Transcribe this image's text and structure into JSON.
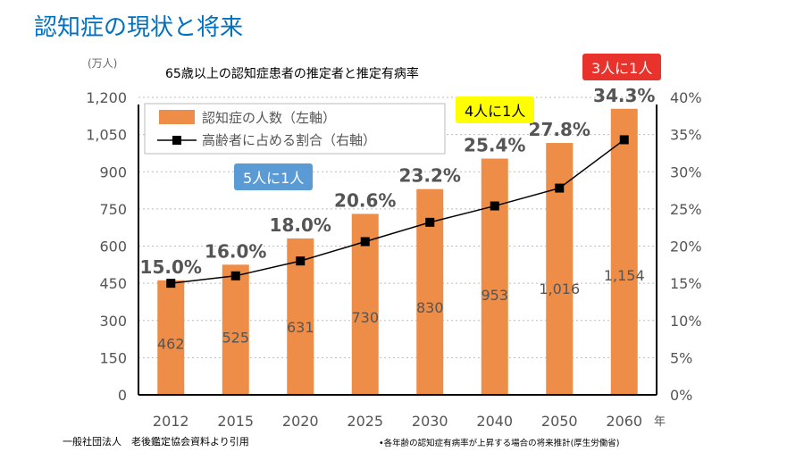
{
  "page": {
    "title": "認知症の現状と将来",
    "source": "一般社団法人　老後鑑定協会資料より引用",
    "note": "•各年齢の認知症有病率が上昇する場合の将来推計(厚生労働省)"
  },
  "callouts": [
    {
      "text": "5人に1人",
      "color": "#5b9bd5",
      "text_color": "#ffffff"
    },
    {
      "text": "4人に1人",
      "color": "#ffff00",
      "text_color": "#000000"
    },
    {
      "text": "3人に1人",
      "color": "#e8322b",
      "text_color": "#ffffff"
    }
  ],
  "chart_data": {
    "type": "bar+line",
    "title": "65歳以上の認知症患者の推定者と推定有病率",
    "left_unit": "(万人)",
    "x_unit": "年",
    "categories": [
      "2012",
      "2015",
      "2020",
      "2025",
      "2030",
      "2040",
      "2050",
      "2060"
    ],
    "series": [
      {
        "name": "認知症の人数（左軸）",
        "type": "bar",
        "axis": "left",
        "color": "#ed8d47",
        "values": [
          462,
          525,
          631,
          730,
          830,
          953,
          1016,
          1154
        ]
      },
      {
        "name": "高齢者に占める割合（右軸）",
        "type": "line",
        "axis": "right",
        "color": "#000000",
        "values": [
          15.0,
          16.0,
          18.0,
          20.6,
          23.2,
          25.4,
          27.8,
          34.3
        ]
      }
    ],
    "left_ticks": [
      "0",
      "150",
      "300",
      "450",
      "600",
      "750",
      "900",
      "1,050",
      "1,200"
    ],
    "right_ticks": [
      "0%",
      "5%",
      "10%",
      "15%",
      "20%",
      "25%",
      "30%",
      "35%",
      "40%"
    ],
    "ylim_left": [
      0,
      1200
    ],
    "ylim_right": [
      0,
      40
    ],
    "legend": "top-left"
  }
}
